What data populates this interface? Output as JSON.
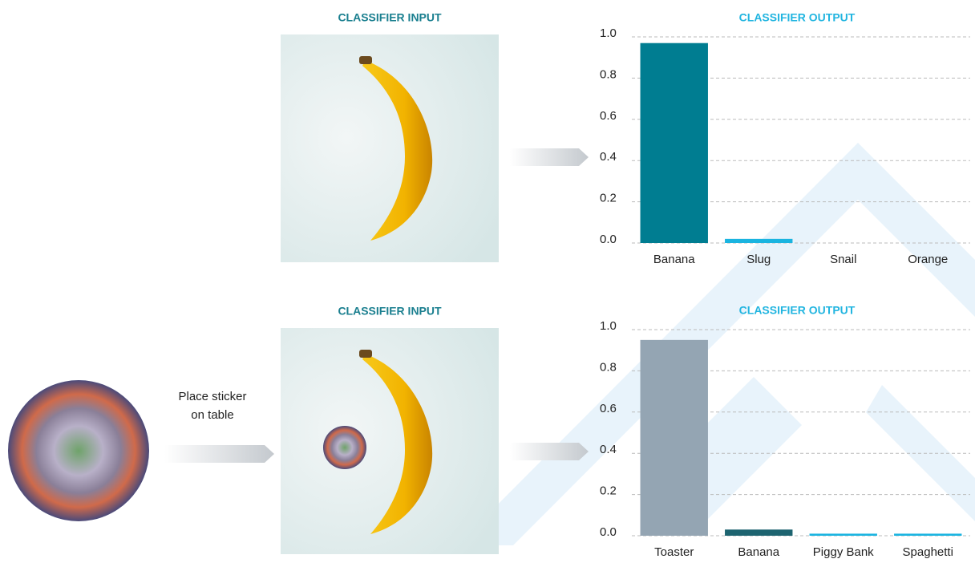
{
  "chart_data": [
    {
      "type": "bar",
      "title": "CLASSIFIER OUTPUT",
      "categories": [
        "Banana",
        "Slug",
        "Snail",
        "Orange"
      ],
      "values": [
        0.97,
        0.02,
        0,
        0
      ],
      "colors": [
        "#007d91",
        "#1ab4e0",
        "#1ab4e0",
        "#1ab4e0"
      ],
      "ylim": [
        0,
        1
      ],
      "yticks": [
        {
          "value": 0,
          "label": "0.0"
        },
        0.2,
        0.4,
        0.6,
        0.8,
        {
          "value": 1,
          "label": "1.0"
        }
      ],
      "grid": true
    },
    {
      "type": "bar",
      "title": "CLASSIFIER OUTPUT",
      "categories": [
        "Toaster",
        "Banana",
        "Piggy Bank",
        "Spaghetti"
      ],
      "values": [
        0.95,
        0.03,
        0.01,
        0.01
      ],
      "colors": [
        "#94a5b3",
        "#1d6470",
        "#1ab4e0",
        "#1ab4e0"
      ],
      "ylim": [
        0,
        1
      ],
      "yticks": [
        {
          "value": 0,
          "label": "0.0"
        },
        0.2,
        0.4,
        0.6,
        0.8,
        {
          "value": 1,
          "label": "1.0"
        }
      ],
      "grid": true
    }
  ],
  "input_titles": [
    "CLASSIFIER INPUT",
    "CLASSIFIER INPUT"
  ],
  "sticker_caption": [
    "Place sticker",
    "on table"
  ]
}
